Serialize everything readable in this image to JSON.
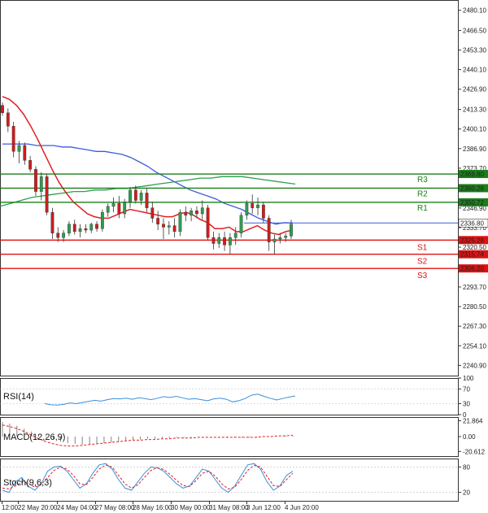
{
  "chart_data": {
    "type": "candlestick",
    "main": {
      "ylim": [
        2234.0,
        2487.0
      ],
      "y_ticks": [
        "2480.10",
        "2466.50",
        "2453.30",
        "2440.10",
        "2426.90",
        "2413.30",
        "2400.10",
        "2386.90",
        "2373.70",
        "2360.10",
        "2346.90",
        "2333.70",
        "2320.50",
        "2306.90",
        "2293.70",
        "2280.50",
        "2267.30",
        "2254.10",
        "2240.90"
      ],
      "x_tick_labels": [
        "12:00",
        "22 May 20:00",
        "24 May 04:00",
        "27 May 08:00",
        "28 May 16:00",
        "30 May 00:00",
        "31 May 08:00",
        "3 Jun 12:00",
        "4 Jun 20:00"
      ],
      "candles": [
        {
          "o": 2416,
          "h": 2418,
          "l": 2409,
          "c": 2411
        },
        {
          "o": 2411,
          "h": 2414,
          "l": 2398,
          "c": 2402
        },
        {
          "o": 2402,
          "h": 2405,
          "l": 2381,
          "c": 2385
        },
        {
          "o": 2385,
          "h": 2392,
          "l": 2377,
          "c": 2389
        },
        {
          "o": 2389,
          "h": 2391,
          "l": 2376,
          "c": 2379
        },
        {
          "o": 2379,
          "h": 2382,
          "l": 2371,
          "c": 2373
        },
        {
          "o": 2373,
          "h": 2375,
          "l": 2355,
          "c": 2358
        },
        {
          "o": 2358,
          "h": 2371,
          "l": 2352,
          "c": 2368
        },
        {
          "o": 2368,
          "h": 2370,
          "l": 2342,
          "c": 2344
        },
        {
          "o": 2344,
          "h": 2347,
          "l": 2326,
          "c": 2330
        },
        {
          "o": 2330,
          "h": 2334,
          "l": 2324,
          "c": 2327
        },
        {
          "o": 2327,
          "h": 2332,
          "l": 2324,
          "c": 2330
        },
        {
          "o": 2330,
          "h": 2338,
          "l": 2328,
          "c": 2336
        },
        {
          "o": 2336,
          "h": 2339,
          "l": 2329,
          "c": 2331
        },
        {
          "o": 2331,
          "h": 2336,
          "l": 2327,
          "c": 2333
        },
        {
          "o": 2333,
          "h": 2336,
          "l": 2330,
          "c": 2332
        },
        {
          "o": 2332,
          "h": 2337,
          "l": 2330,
          "c": 2336
        },
        {
          "o": 2336,
          "h": 2338,
          "l": 2331,
          "c": 2333
        },
        {
          "o": 2333,
          "h": 2346,
          "l": 2331,
          "c": 2344
        },
        {
          "o": 2344,
          "h": 2350,
          "l": 2341,
          "c": 2348
        },
        {
          "o": 2348,
          "h": 2354,
          "l": 2344,
          "c": 2350
        },
        {
          "o": 2350,
          "h": 2355,
          "l": 2340,
          "c": 2343
        },
        {
          "o": 2343,
          "h": 2353,
          "l": 2340,
          "c": 2351
        },
        {
          "o": 2351,
          "h": 2361,
          "l": 2347,
          "c": 2359
        },
        {
          "o": 2359,
          "h": 2362,
          "l": 2350,
          "c": 2352
        },
        {
          "o": 2352,
          "h": 2359,
          "l": 2349,
          "c": 2357
        },
        {
          "o": 2357,
          "h": 2360,
          "l": 2344,
          "c": 2347
        },
        {
          "o": 2347,
          "h": 2351,
          "l": 2337,
          "c": 2340
        },
        {
          "o": 2340,
          "h": 2345,
          "l": 2332,
          "c": 2336
        },
        {
          "o": 2336,
          "h": 2340,
          "l": 2326,
          "c": 2334
        },
        {
          "o": 2334,
          "h": 2338,
          "l": 2329,
          "c": 2335
        },
        {
          "o": 2335,
          "h": 2340,
          "l": 2327,
          "c": 2331
        },
        {
          "o": 2331,
          "h": 2346,
          "l": 2328,
          "c": 2344
        },
        {
          "o": 2344,
          "h": 2348,
          "l": 2338,
          "c": 2342
        },
        {
          "o": 2342,
          "h": 2347,
          "l": 2338,
          "c": 2345
        },
        {
          "o": 2345,
          "h": 2348,
          "l": 2340,
          "c": 2343
        },
        {
          "o": 2343,
          "h": 2352,
          "l": 2339,
          "c": 2347
        },
        {
          "o": 2347,
          "h": 2349,
          "l": 2325,
          "c": 2327
        },
        {
          "o": 2327,
          "h": 2331,
          "l": 2319,
          "c": 2323
        },
        {
          "o": 2323,
          "h": 2330,
          "l": 2320,
          "c": 2327
        },
        {
          "o": 2327,
          "h": 2331,
          "l": 2318,
          "c": 2322
        },
        {
          "o": 2322,
          "h": 2330,
          "l": 2316,
          "c": 2327
        },
        {
          "o": 2327,
          "h": 2334,
          "l": 2322,
          "c": 2330
        },
        {
          "o": 2330,
          "h": 2344,
          "l": 2327,
          "c": 2342
        },
        {
          "o": 2342,
          "h": 2352,
          "l": 2339,
          "c": 2350
        },
        {
          "o": 2350,
          "h": 2356,
          "l": 2343,
          "c": 2347
        },
        {
          "o": 2347,
          "h": 2354,
          "l": 2342,
          "c": 2349
        },
        {
          "o": 2349,
          "h": 2351,
          "l": 2337,
          "c": 2340
        },
        {
          "o": 2340,
          "h": 2342,
          "l": 2318,
          "c": 2324
        },
        {
          "o": 2324,
          "h": 2329,
          "l": 2316,
          "c": 2326
        },
        {
          "o": 2326,
          "h": 2330,
          "l": 2323,
          "c": 2327
        },
        {
          "o": 2327,
          "h": 2330,
          "l": 2324,
          "c": 2328
        },
        {
          "o": 2328,
          "h": 2339,
          "l": 2326,
          "c": 2336
        }
      ],
      "ma_slow": [
        2390,
        2390,
        2390,
        2390,
        2389,
        2389,
        2389,
        2388,
        2388,
        2387,
        2386,
        2385,
        2385,
        2384,
        2383,
        2381,
        2378,
        2375,
        2371,
        2368,
        2365,
        2362,
        2359,
        2357,
        2355,
        2353,
        2350,
        2348,
        2346,
        2343,
        2340,
        2338,
        2336,
        2337,
        2336.8
      ],
      "ma_fast": [
        2422,
        2420,
        2416,
        2410,
        2402,
        2393,
        2383,
        2373,
        2364,
        2357,
        2351,
        2347,
        2343,
        2341,
        2340,
        2340,
        2342,
        2344,
        2346,
        2345,
        2344,
        2343,
        2342,
        2341,
        2341,
        2343,
        2344,
        2342,
        2339,
        2337,
        2333,
        2333,
        2334,
        2331,
        2331,
        2333,
        2335,
        2332,
        2330,
        2329,
        2331,
        2332
      ],
      "ma_long": [
        2348,
        2350,
        2352,
        2354,
        2355,
        2356,
        2357,
        2358,
        2358,
        2359,
        2359,
        2360,
        2360,
        2361,
        2362,
        2363,
        2364,
        2365,
        2366,
        2367,
        2367,
        2368,
        2368,
        2368,
        2367,
        2366,
        2365,
        2364,
        2363
      ],
      "levels": [
        {
          "name": "R3",
          "value": 2369.8,
          "label": "2369.80",
          "color": "#1a7f1a"
        },
        {
          "name": "R2",
          "value": 2360.26,
          "label": "2360.26",
          "color": "#1a7f1a"
        },
        {
          "name": "R1",
          "value": 2350.72,
          "label": "2350.72",
          "color": "#1a7f1a"
        },
        {
          "name": "S1",
          "value": 2325.28,
          "label": "2325.28",
          "color": "#e01010"
        },
        {
          "name": "S2",
          "value": 2315.74,
          "label": "2315.74",
          "color": "#e01010"
        },
        {
          "name": "S3",
          "value": 2306.2,
          "label": "2306.20",
          "color": "#e01010"
        }
      ],
      "current_price": {
        "value": 2336.8,
        "label": "2336.80"
      }
    },
    "rsi": {
      "title": "RSI(14)",
      "ylim": [
        0,
        100
      ],
      "y_ticks": [
        "100",
        "70",
        "30",
        "0"
      ],
      "values": [
        30,
        27,
        26,
        28,
        32,
        30,
        33,
        36,
        39,
        37,
        41,
        44,
        43,
        45,
        42,
        46,
        44,
        41,
        45,
        49,
        47,
        50,
        46,
        42,
        44,
        41,
        38,
        43,
        45,
        42,
        35,
        38,
        44,
        53,
        56,
        50,
        45,
        40,
        44,
        48,
        51
      ]
    },
    "macd": {
      "title": "MACD(12,26,9)",
      "ylim": [
        -27,
        27
      ],
      "y_ticks": [
        "21.864",
        "0.00",
        "-20.612"
      ],
      "histogram": [
        20,
        18,
        15,
        11,
        7,
        3,
        -1,
        -4,
        -7,
        -9,
        -10,
        -11,
        -11,
        -10,
        -9,
        -8,
        -7,
        -6,
        -5,
        -4,
        -3,
        -3,
        -2,
        -2,
        -1,
        -1,
        -1,
        0,
        0,
        0,
        0,
        -1,
        -1,
        -1,
        -1,
        -1,
        0,
        0,
        0,
        1,
        1
      ],
      "signal": [
        16,
        14,
        11,
        7,
        2,
        -3,
        -7,
        -10,
        -12,
        -13,
        -13,
        -12,
        -11,
        -10,
        -9,
        -8,
        -7,
        -6,
        -5,
        -5,
        -4,
        -4,
        -3,
        -3,
        -2,
        -2,
        -2,
        -1,
        -1,
        -1,
        -1,
        -1,
        -1,
        -1,
        -1,
        -1,
        0,
        0,
        1,
        1,
        2
      ]
    },
    "stoch": {
      "title": "Stoch(9,6,3)",
      "ylim": [
        0,
        100
      ],
      "y_ticks": [
        "80",
        "20"
      ],
      "k": [
        25,
        20,
        45,
        55,
        35,
        25,
        40,
        70,
        80,
        82,
        70,
        50,
        30,
        40,
        65,
        85,
        88,
        75,
        50,
        30,
        25,
        45,
        65,
        80,
        78,
        70,
        55,
        40,
        30,
        35,
        55,
        75,
        70,
        50,
        30,
        20,
        35,
        60,
        85,
        88,
        75,
        45,
        25,
        35,
        60,
        70
      ],
      "d": [
        30,
        28,
        35,
        45,
        42,
        32,
        38,
        55,
        72,
        80,
        75,
        60,
        40,
        38,
        55,
        75,
        85,
        80,
        60,
        40,
        30,
        38,
        55,
        72,
        78,
        74,
        62,
        48,
        36,
        34,
        48,
        65,
        70,
        58,
        40,
        28,
        32,
        50,
        72,
        84,
        80,
        58,
        36,
        34,
        50,
        65
      ]
    }
  }
}
